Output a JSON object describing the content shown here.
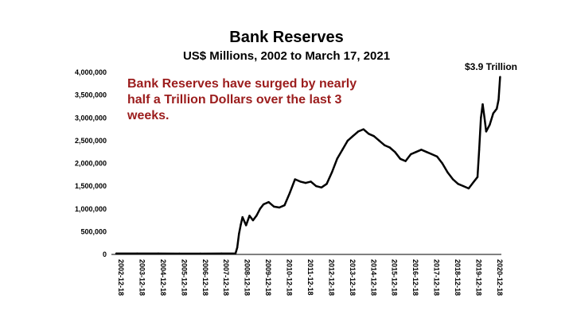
{
  "slide": {
    "title": "Bank Reserves",
    "subtitle": "US$ Millions, 2002 to March 17, 2021",
    "annotation": "Bank Reserves have surged by nearly half a Trillion Dollars over the last 3 weeks.",
    "end_label": "$3.9 Trillion"
  },
  "chart_data": {
    "type": "line",
    "title": "Bank Reserves",
    "subtitle": "US$ Millions, 2002 to March 17, 2021",
    "xlabel": "",
    "ylabel": "",
    "ylim": [
      0,
      4000000
    ],
    "yticks": [
      0,
      500000,
      1000000,
      1500000,
      2000000,
      2500000,
      3000000,
      3500000,
      4000000
    ],
    "ytick_labels": [
      "0",
      "500,000",
      "1,000,000",
      "1,500,000",
      "2,000,000",
      "2,500,000",
      "3,000,000",
      "3,500,000",
      "4,000,000"
    ],
    "xtick_labels": [
      "2002-12-18",
      "2003-12-18",
      "2004-12-18",
      "2005-12-18",
      "2006-12-18",
      "2007-12-18",
      "2008-12-18",
      "2009-12-18",
      "2010-12-18",
      "2011-12-18",
      "2012-12-18",
      "2013-12-18",
      "2014-12-18",
      "2015-12-18",
      "2016-12-18",
      "2017-12-18",
      "2018-12-18",
      "2019-12-18",
      "2020-12-18"
    ],
    "grid": false,
    "line_color": "#000000",
    "series": [
      {
        "values": [
          [
            "2002-12-18",
            20000
          ],
          [
            "2003-12-18",
            20000
          ],
          [
            "2004-12-18",
            20000
          ],
          [
            "2005-12-18",
            18000
          ],
          [
            "2006-12-18",
            18000
          ],
          [
            "2007-12-18",
            20000
          ],
          [
            "2008-08-18",
            20000
          ],
          [
            "2008-09-18",
            150000
          ],
          [
            "2008-10-18",
            450000
          ],
          [
            "2008-11-18",
            650000
          ],
          [
            "2008-12-18",
            820000
          ],
          [
            "2009-02-18",
            640000
          ],
          [
            "2009-04-18",
            850000
          ],
          [
            "2009-06-18",
            750000
          ],
          [
            "2009-08-18",
            850000
          ],
          [
            "2009-10-18",
            1000000
          ],
          [
            "2009-12-18",
            1100000
          ],
          [
            "2010-03-18",
            1150000
          ],
          [
            "2010-06-18",
            1050000
          ],
          [
            "2010-09-18",
            1030000
          ],
          [
            "2010-12-18",
            1080000
          ],
          [
            "2011-03-18",
            1350000
          ],
          [
            "2011-06-18",
            1650000
          ],
          [
            "2011-09-18",
            1600000
          ],
          [
            "2011-12-18",
            1570000
          ],
          [
            "2012-03-18",
            1600000
          ],
          [
            "2012-06-18",
            1500000
          ],
          [
            "2012-09-18",
            1470000
          ],
          [
            "2012-12-18",
            1550000
          ],
          [
            "2013-03-18",
            1800000
          ],
          [
            "2013-06-18",
            2100000
          ],
          [
            "2013-09-18",
            2300000
          ],
          [
            "2013-12-18",
            2500000
          ],
          [
            "2014-03-18",
            2600000
          ],
          [
            "2014-06-18",
            2700000
          ],
          [
            "2014-09-18",
            2750000
          ],
          [
            "2014-12-18",
            2650000
          ],
          [
            "2015-03-18",
            2600000
          ],
          [
            "2015-06-18",
            2500000
          ],
          [
            "2015-09-18",
            2400000
          ],
          [
            "2015-12-18",
            2350000
          ],
          [
            "2016-03-18",
            2250000
          ],
          [
            "2016-06-18",
            2100000
          ],
          [
            "2016-09-18",
            2050000
          ],
          [
            "2016-12-18",
            2200000
          ],
          [
            "2017-03-18",
            2250000
          ],
          [
            "2017-06-18",
            2300000
          ],
          [
            "2017-09-18",
            2250000
          ],
          [
            "2017-12-18",
            2200000
          ],
          [
            "2018-03-18",
            2150000
          ],
          [
            "2018-06-18",
            2000000
          ],
          [
            "2018-09-18",
            1800000
          ],
          [
            "2018-12-18",
            1650000
          ],
          [
            "2019-03-18",
            1550000
          ],
          [
            "2019-06-18",
            1500000
          ],
          [
            "2019-09-18",
            1450000
          ],
          [
            "2019-12-18",
            1600000
          ],
          [
            "2020-02-18",
            1700000
          ],
          [
            "2020-03-18",
            2300000
          ],
          [
            "2020-04-18",
            3000000
          ],
          [
            "2020-05-18",
            3300000
          ],
          [
            "2020-06-18",
            3000000
          ],
          [
            "2020-07-18",
            2700000
          ],
          [
            "2020-09-18",
            2850000
          ],
          [
            "2020-11-18",
            3100000
          ],
          [
            "2020-12-18",
            3150000
          ],
          [
            "2021-01-18",
            3200000
          ],
          [
            "2021-02-18",
            3400000
          ],
          [
            "2021-03-17",
            3900000
          ]
        ]
      }
    ]
  }
}
